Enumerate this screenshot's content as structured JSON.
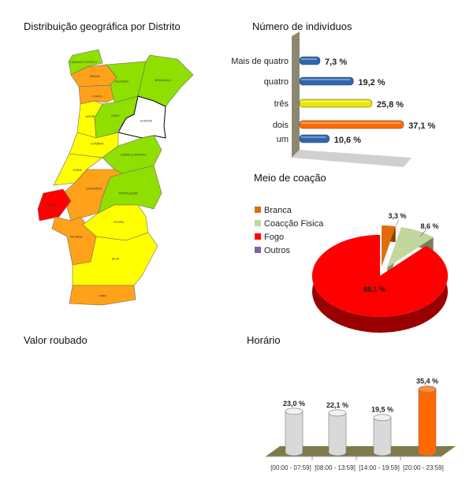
{
  "titles": {
    "map": "Distribuição geográfica por Distrito",
    "individuals": "Número de indivíduos",
    "coercion": "Meio de coação",
    "stolen": "Valor roubado",
    "schedule": "Horário"
  },
  "map": {
    "colors": {
      "green": "#8fe000",
      "orange": "#ffa21a",
      "yellow": "#ffff00",
      "red": "#ff0000",
      "white": "#ffffff"
    },
    "districts": [
      {
        "name": "VIANA DO CASTELO",
        "color": "green"
      },
      {
        "name": "BRAGA",
        "color": "orange"
      },
      {
        "name": "PORTO",
        "color": "orange"
      },
      {
        "name": "VILA REAL",
        "color": "green"
      },
      {
        "name": "BRAGANÇA",
        "color": "green"
      },
      {
        "name": "AVEIRO",
        "color": "yellow"
      },
      {
        "name": "VISEU",
        "color": "green"
      },
      {
        "name": "GUARDA",
        "color": "white"
      },
      {
        "name": "COIMBRA",
        "color": "yellow"
      },
      {
        "name": "CASTELO BRANCO",
        "color": "green"
      },
      {
        "name": "LEIRIA",
        "color": "yellow"
      },
      {
        "name": "SANTARÉM",
        "color": "orange"
      },
      {
        "name": "PORTALEGRE",
        "color": "green"
      },
      {
        "name": "LISBOA",
        "color": "red"
      },
      {
        "name": "SETÚBAL",
        "color": "orange"
      },
      {
        "name": "ÉVORA",
        "color": "yellow"
      },
      {
        "name": "BEJA",
        "color": "yellow"
      },
      {
        "name": "FARO",
        "color": "orange"
      }
    ]
  },
  "chart_data": [
    {
      "type": "bar",
      "orientation": "horizontal",
      "title": "Número de indivíduos",
      "categories": [
        "Mais de quatro",
        "quatro",
        "três",
        "dois",
        "um"
      ],
      "values": [
        7.3,
        19.2,
        25.8,
        37.1,
        10.6
      ],
      "data_labels": [
        "7,3 %",
        "19,2 %",
        "25,8 %",
        "37,1 %",
        "10,6 %"
      ],
      "colors": [
        "#2e64b0",
        "#2e64b0",
        "#e8e800",
        "#ff6a00",
        "#2e64b0"
      ],
      "unit": "%"
    },
    {
      "type": "pie",
      "title": "Meio de coação",
      "legend_position": "left",
      "series": [
        {
          "name": "Branca",
          "value": 3.3,
          "label": "3,3 %",
          "color": "#e36c0a"
        },
        {
          "name": "Coacção Fisica",
          "value": 8.6,
          "label": "8,6 %",
          "color": "#c3d69b"
        },
        {
          "name": "Fogo",
          "value": 88.1,
          "label": "88,1 %",
          "color": "#ff0000"
        },
        {
          "name": "Outros",
          "value": 0,
          "label": "",
          "color": "#8064a2"
        }
      ]
    },
    {
      "type": "bar",
      "title": "Horário",
      "categories": [
        "[00:00 - 07:59]",
        "[08:00 - 13:59]",
        "[14:00 - 19:59]",
        "[20:00 - 23:59]"
      ],
      "values": [
        23.0,
        22.1,
        19.5,
        35.4
      ],
      "data_labels": [
        "23,0 %",
        "22,1 %",
        "19,5 %",
        "35,4 %"
      ],
      "colors": [
        "#d9d9d9",
        "#d9d9d9",
        "#d9d9d9",
        "#ff6a00"
      ],
      "unit": "%"
    }
  ]
}
